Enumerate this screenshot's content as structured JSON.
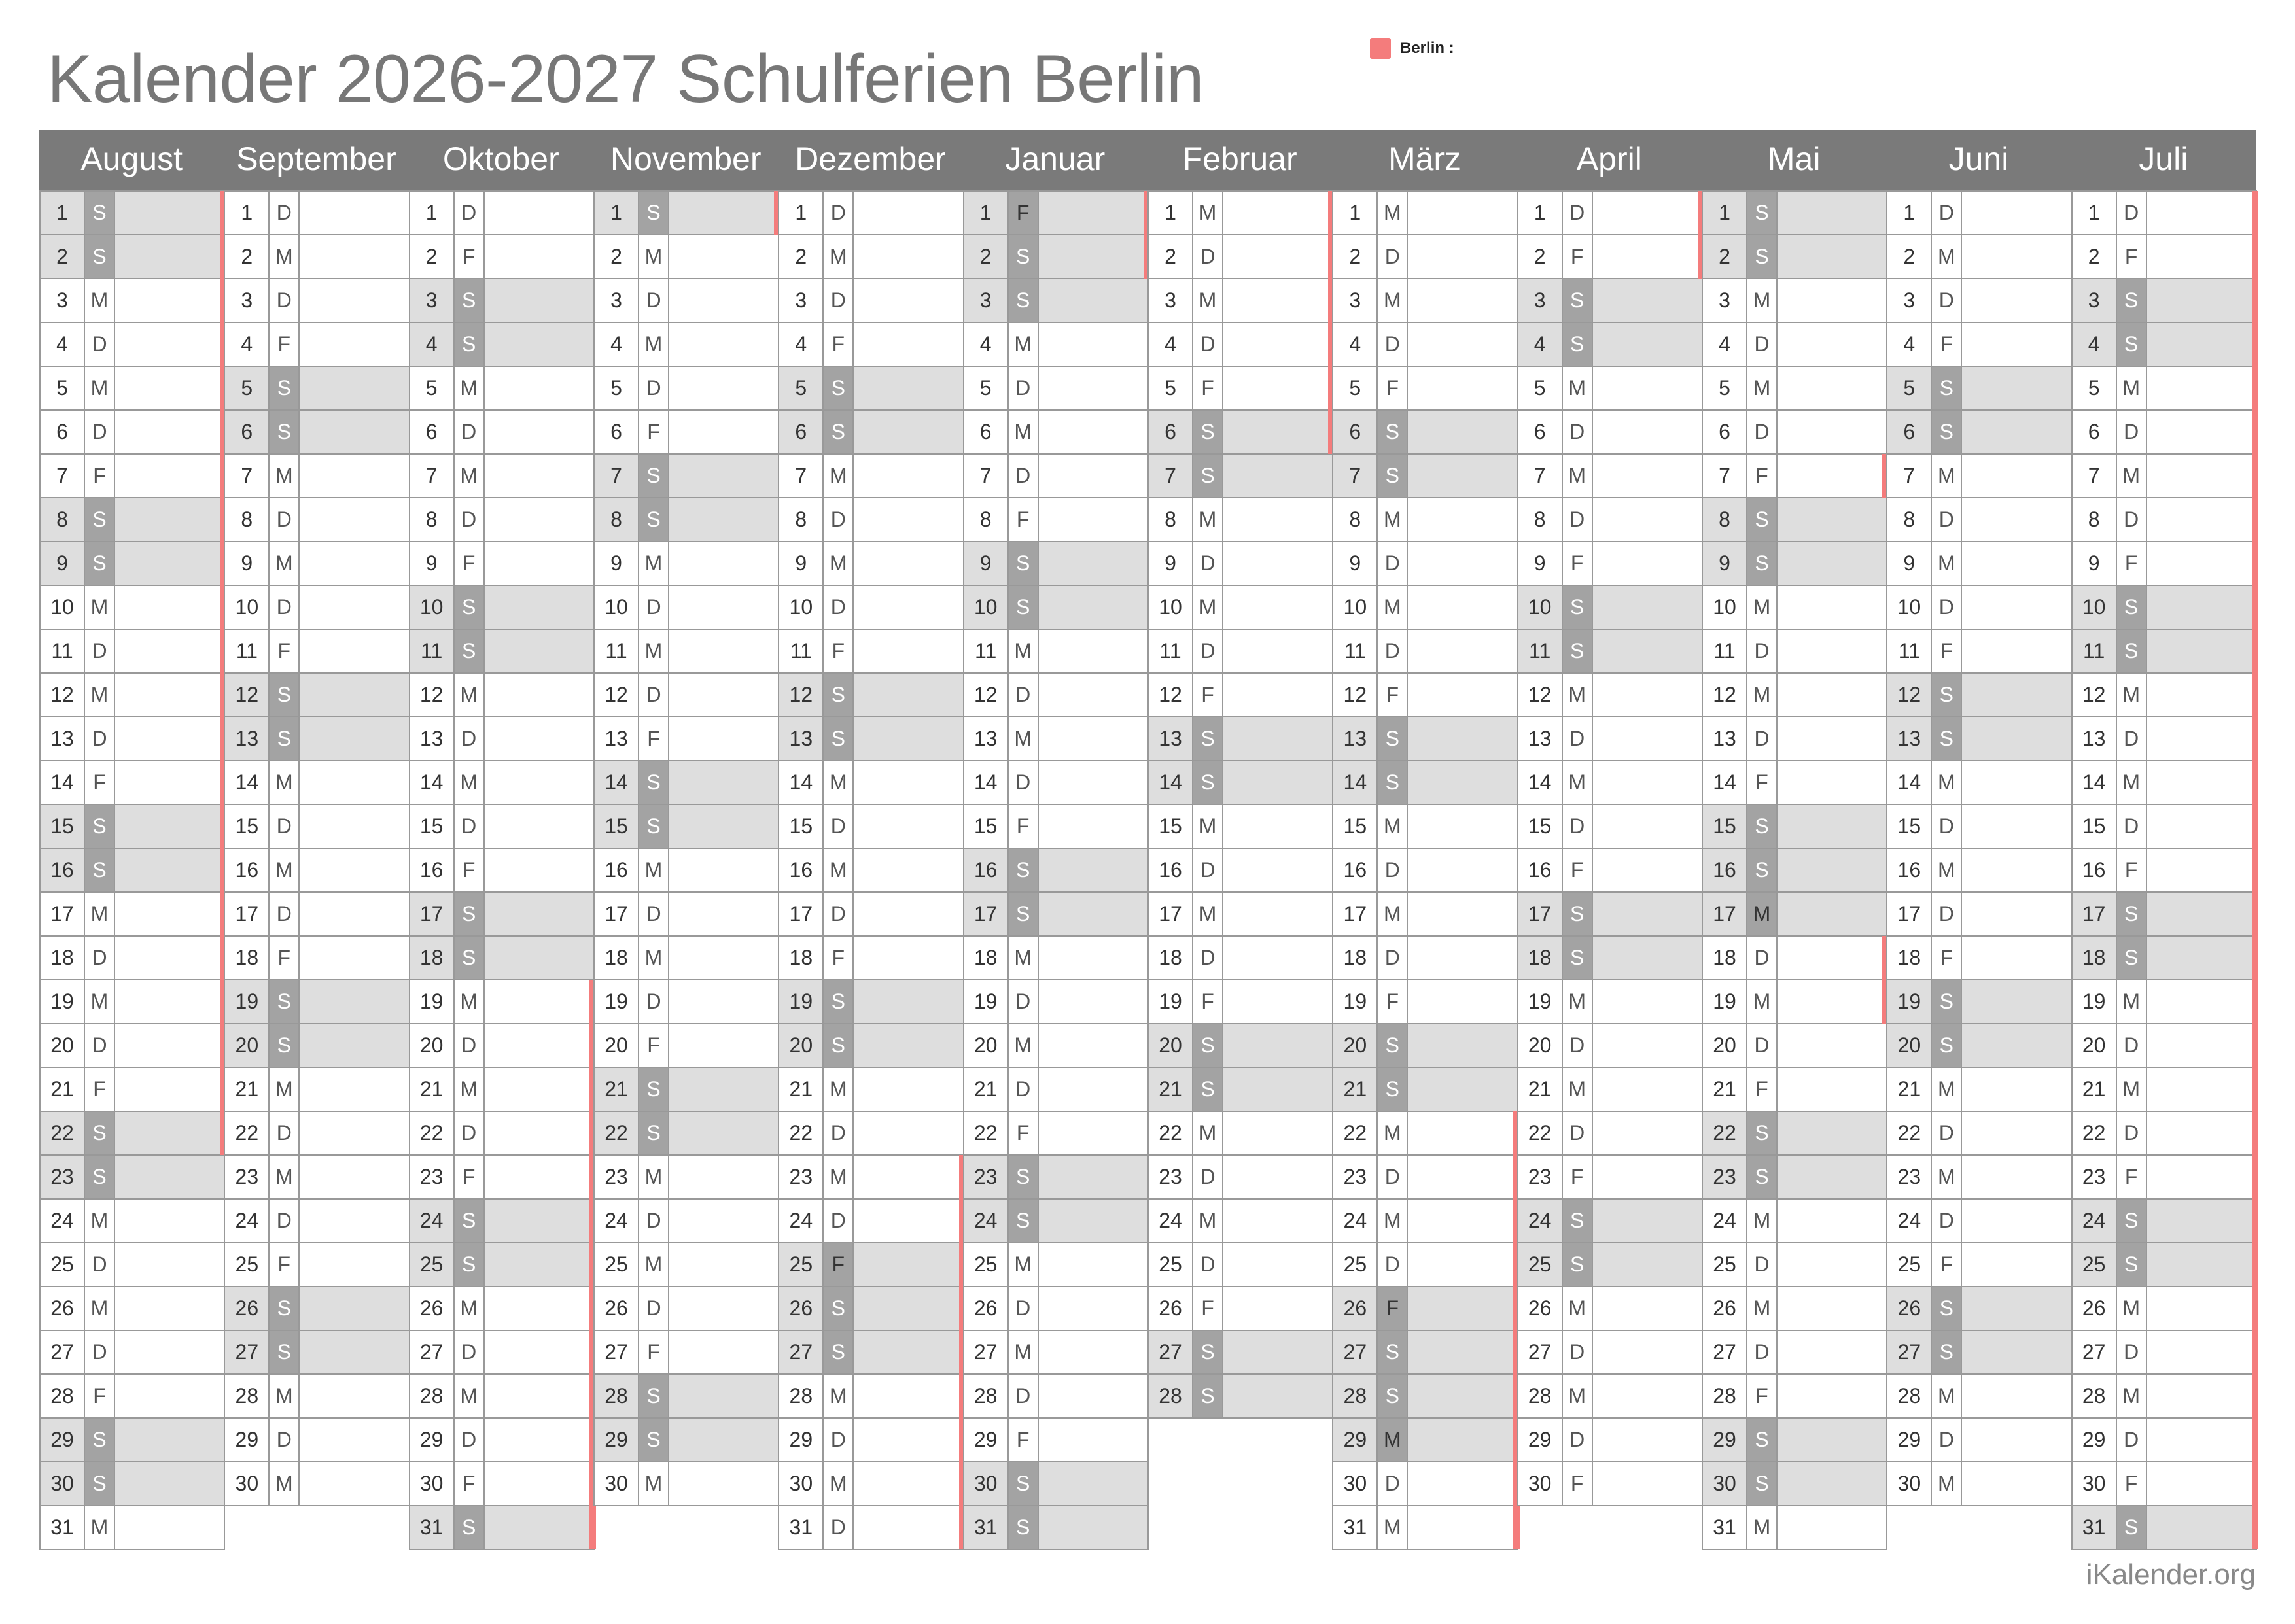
{
  "title": "Kalender 2026-2027 Schulferien Berlin",
  "legend": {
    "label": "Berlin :",
    "color": "#f47c7c"
  },
  "credit": "iKalender.org",
  "colors": {
    "header": "#7a7a7a",
    "weekend_cell": "#dedede",
    "weekend_abbr": "#a3a3a3",
    "holiday_marker": "#f47c7c"
  },
  "months": [
    {
      "name": "August",
      "days": [
        "S",
        "S",
        "M",
        "D",
        "M",
        "D",
        "F",
        "S",
        "S",
        "M",
        "D",
        "M",
        "D",
        "F",
        "S",
        "S",
        "M",
        "D",
        "M",
        "D",
        "F",
        "S",
        "S",
        "M",
        "D",
        "M",
        "D",
        "F",
        "S",
        "S",
        "M"
      ],
      "holiday_ranges": [
        [
          1,
          22
        ]
      ],
      "hol_days": []
    },
    {
      "name": "September",
      "days": [
        "D",
        "M",
        "D",
        "F",
        "S",
        "S",
        "M",
        "D",
        "M",
        "D",
        "F",
        "S",
        "S",
        "M",
        "D",
        "M",
        "D",
        "F",
        "S",
        "S",
        "M",
        "D",
        "M",
        "D",
        "F",
        "S",
        "S",
        "M",
        "D",
        "M"
      ],
      "holiday_ranges": [],
      "hol_days": []
    },
    {
      "name": "Oktober",
      "days": [
        "D",
        "F",
        "S",
        "S",
        "M",
        "D",
        "M",
        "D",
        "F",
        "S",
        "S",
        "M",
        "D",
        "M",
        "D",
        "F",
        "S",
        "S",
        "M",
        "D",
        "M",
        "D",
        "F",
        "S",
        "S",
        "M",
        "D",
        "M",
        "D",
        "F",
        "S"
      ],
      "holiday_ranges": [
        [
          19,
          31
        ]
      ],
      "hol_days": []
    },
    {
      "name": "November",
      "days": [
        "S",
        "M",
        "D",
        "M",
        "D",
        "F",
        "S",
        "S",
        "M",
        "D",
        "M",
        "D",
        "F",
        "S",
        "S",
        "M",
        "D",
        "M",
        "D",
        "F",
        "S",
        "S",
        "M",
        "D",
        "M",
        "D",
        "F",
        "S",
        "S",
        "M"
      ],
      "holiday_ranges": [
        [
          1,
          1
        ]
      ],
      "hol_days": []
    },
    {
      "name": "Dezember",
      "days": [
        "D",
        "M",
        "D",
        "F",
        "S",
        "S",
        "M",
        "D",
        "M",
        "D",
        "F",
        "S",
        "S",
        "M",
        "D",
        "M",
        "D",
        "F",
        "S",
        "S",
        "M",
        "D",
        "M",
        "D",
        "F",
        "S",
        "S",
        "M",
        "D",
        "M",
        "D"
      ],
      "holiday_ranges": [
        [
          23,
          31
        ]
      ],
      "hol_days": [
        25
      ]
    },
    {
      "name": "Januar",
      "days": [
        "F",
        "S",
        "S",
        "M",
        "D",
        "M",
        "D",
        "F",
        "S",
        "S",
        "M",
        "D",
        "M",
        "D",
        "F",
        "S",
        "S",
        "M",
        "D",
        "M",
        "D",
        "F",
        "S",
        "S",
        "M",
        "D",
        "M",
        "D",
        "F",
        "S",
        "S"
      ],
      "holiday_ranges": [
        [
          1,
          2
        ]
      ],
      "hol_days": [
        1
      ]
    },
    {
      "name": "Februar",
      "days": [
        "M",
        "D",
        "M",
        "D",
        "F",
        "S",
        "S",
        "M",
        "D",
        "M",
        "D",
        "F",
        "S",
        "S",
        "M",
        "D",
        "M",
        "D",
        "F",
        "S",
        "S",
        "M",
        "D",
        "M",
        "D",
        "F",
        "S",
        "S"
      ],
      "holiday_ranges": [
        [
          1,
          6
        ]
      ],
      "hol_days": []
    },
    {
      "name": "März",
      "days": [
        "M",
        "D",
        "M",
        "D",
        "F",
        "S",
        "S",
        "M",
        "D",
        "M",
        "D",
        "F",
        "S",
        "S",
        "M",
        "D",
        "M",
        "D",
        "F",
        "S",
        "S",
        "M",
        "D",
        "M",
        "D",
        "F",
        "S",
        "S",
        "M",
        "D",
        "M"
      ],
      "holiday_ranges": [
        [
          22,
          31
        ]
      ],
      "hol_days": [
        26,
        29
      ]
    },
    {
      "name": "April",
      "days": [
        "D",
        "F",
        "S",
        "S",
        "M",
        "D",
        "M",
        "D",
        "F",
        "S",
        "S",
        "M",
        "D",
        "M",
        "D",
        "F",
        "S",
        "S",
        "M",
        "D",
        "M",
        "D",
        "F",
        "S",
        "S",
        "M",
        "D",
        "M",
        "D",
        "F"
      ],
      "holiday_ranges": [
        [
          1,
          2
        ]
      ],
      "hol_days": []
    },
    {
      "name": "Mai",
      "days": [
        "S",
        "S",
        "M",
        "D",
        "M",
        "D",
        "F",
        "S",
        "S",
        "M",
        "D",
        "M",
        "D",
        "F",
        "S",
        "S",
        "M",
        "D",
        "M",
        "D",
        "F",
        "S",
        "S",
        "M",
        "D",
        "M",
        "D",
        "F",
        "S",
        "S",
        "M"
      ],
      "holiday_ranges": [
        [
          7,
          7
        ],
        [
          18,
          19
        ]
      ],
      "hol_days": [
        17
      ]
    },
    {
      "name": "Juni",
      "days": [
        "D",
        "M",
        "D",
        "F",
        "S",
        "S",
        "M",
        "D",
        "M",
        "D",
        "F",
        "S",
        "S",
        "M",
        "D",
        "M",
        "D",
        "F",
        "S",
        "S",
        "M",
        "D",
        "M",
        "D",
        "F",
        "S",
        "S",
        "M",
        "D",
        "M"
      ],
      "holiday_ranges": [],
      "hol_days": []
    },
    {
      "name": "Juli",
      "days": [
        "D",
        "F",
        "S",
        "S",
        "M",
        "D",
        "M",
        "D",
        "F",
        "S",
        "S",
        "M",
        "D",
        "M",
        "D",
        "F",
        "S",
        "S",
        "M",
        "D",
        "M",
        "D",
        "F",
        "S",
        "S",
        "M",
        "D",
        "M",
        "D",
        "F",
        "S"
      ],
      "holiday_ranges": [
        [
          1,
          31
        ]
      ],
      "hol_days": []
    }
  ]
}
